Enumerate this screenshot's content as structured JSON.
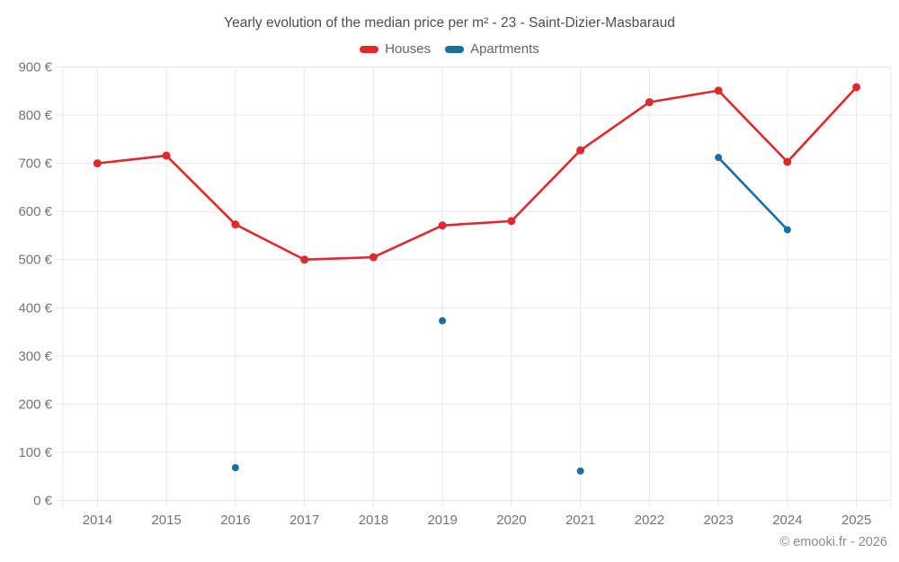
{
  "footer": {
    "attribution": "© emooki.fr - 2026"
  },
  "colors": {
    "houses": "#e0292f",
    "apartments": "#176fa2",
    "grid": "#e8e8e8",
    "axis_text": "#757575",
    "title_text": "#4f4f4f",
    "footer_text": "#8c8c8c",
    "background": "#ffffff"
  },
  "chart_data": {
    "type": "line",
    "title": "Yearly evolution of the median price per m² - 23 - Saint-Dizier-Masbaraud",
    "categories": [
      "2014",
      "2015",
      "2016",
      "2017",
      "2018",
      "2019",
      "2020",
      "2021",
      "2022",
      "2023",
      "2024",
      "2025"
    ],
    "series": [
      {
        "name": "Houses",
        "color": "#e0292f",
        "values": [
          700,
          716,
          573,
          500,
          505,
          571,
          580,
          727,
          827,
          851,
          703,
          858
        ]
      },
      {
        "name": "Apartments",
        "color": "#176fa2",
        "values": [
          null,
          null,
          68,
          null,
          null,
          373,
          null,
          61,
          null,
          712,
          562,
          null
        ]
      }
    ],
    "ylim": [
      0,
      900
    ],
    "y_tick_step": 100,
    "y_tick_labels": [
      "0 €",
      "100 €",
      "200 €",
      "300 €",
      "400 €",
      "500 €",
      "600 €",
      "700 €",
      "800 €",
      "900 €"
    ],
    "y_tick_suffix": " €",
    "grid": true,
    "legend_position": "top"
  }
}
